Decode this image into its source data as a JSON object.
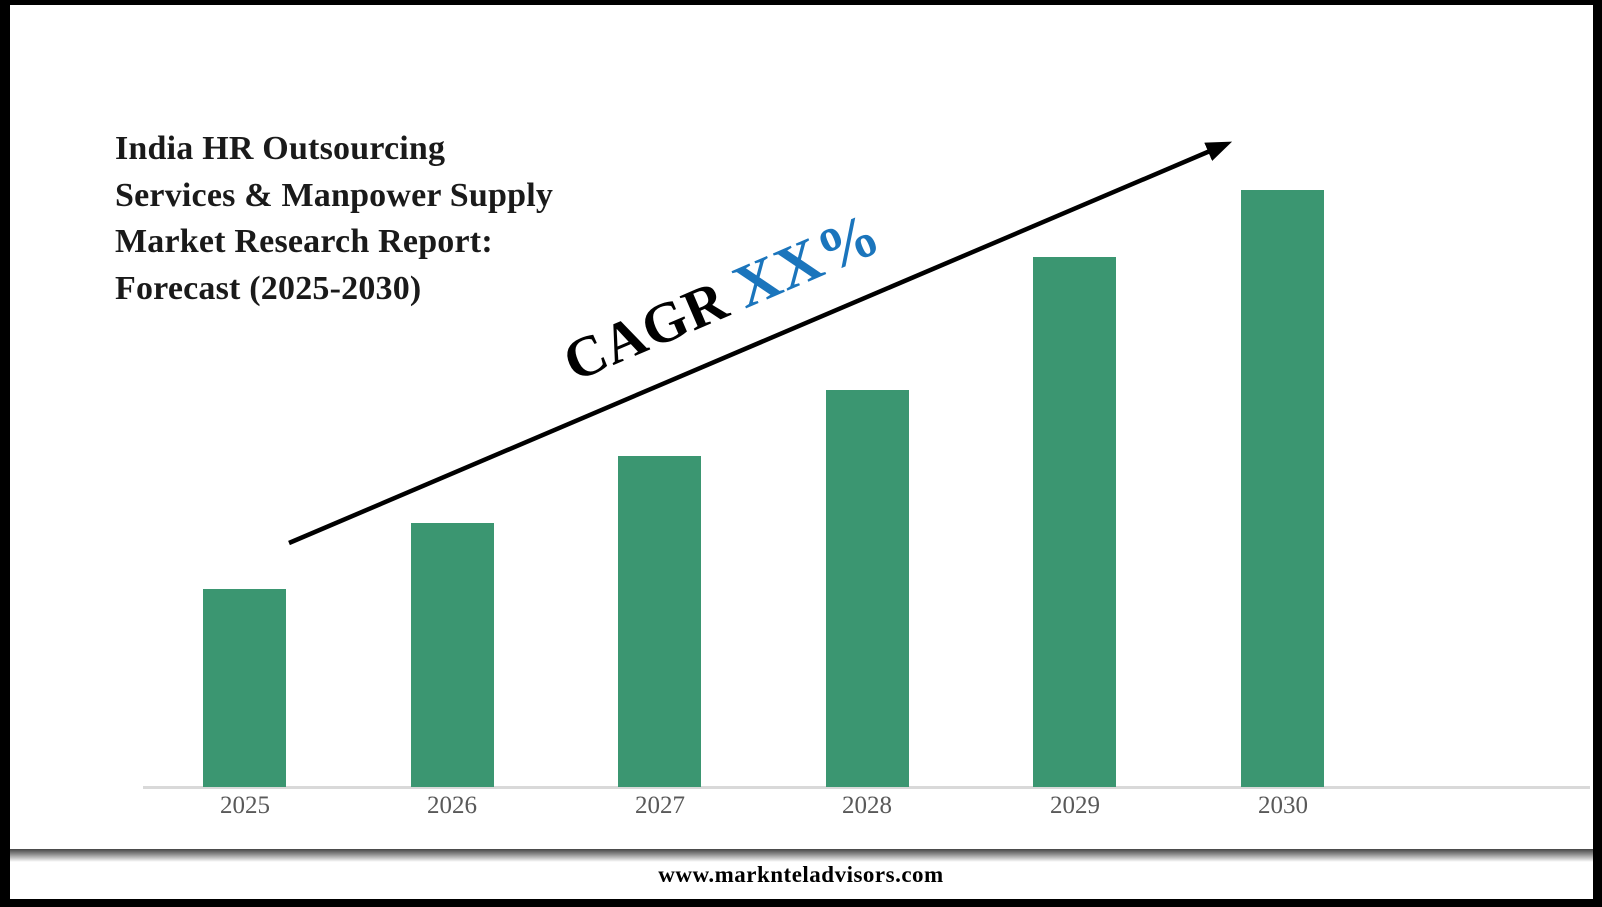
{
  "page": {
    "title_lines": [
      "India HR Outsourcing",
      "Services & Manpower Supply",
      "Market Research Report:",
      "Forecast (2025-2030)"
    ],
    "footer_url": "www.marknteladvisors.com"
  },
  "annotation": {
    "cagr_label": "CAGR",
    "cagr_value": "XX%"
  },
  "chart_data": {
    "type": "bar",
    "title": "India HR Outsourcing Services & Manpower Supply Market Research Report: Forecast (2025-2030)",
    "categories": [
      "2025",
      "2026",
      "2027",
      "2028",
      "2029",
      "2030"
    ],
    "values_relative": [
      0.332,
      0.442,
      0.554,
      0.665,
      0.888,
      1.0
    ],
    "xlabel": "",
    "ylabel": "",
    "y_axis_visible": false,
    "gridlines": false,
    "legend": "none",
    "annotation": "CAGR XX% trend arrow rising left-to-right",
    "bar_color": "#3B9671",
    "axis_line_color": "#D9D9D9",
    "tick_label_color": "#595959",
    "cagr_label_color": "#000000",
    "cagr_value_color": "#1B75BC",
    "arrow_color": "#000000"
  }
}
